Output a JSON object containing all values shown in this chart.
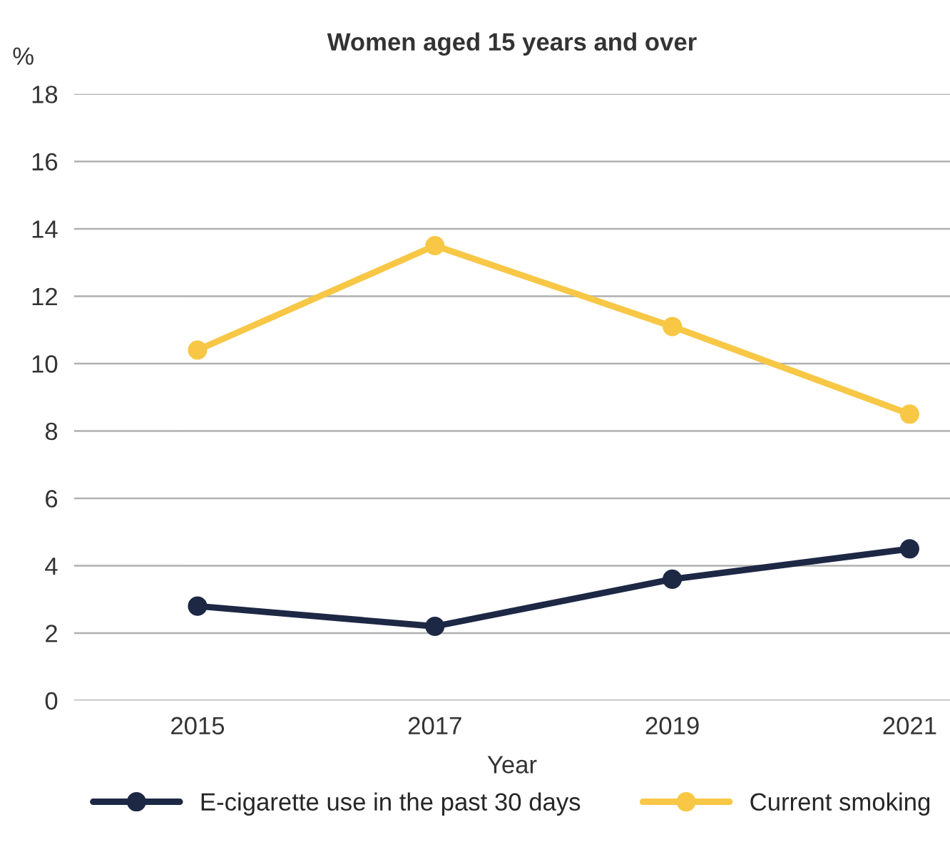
{
  "chart_data": {
    "type": "line",
    "title": "Women aged 15 years and over",
    "xlabel": "Year",
    "ylabel": "%",
    "categories": [
      "2015",
      "2017",
      "2019",
      "2021"
    ],
    "series": [
      {
        "name": "E-cigarette use in the past 30 days",
        "color": "#1d2845",
        "values": [
          2.8,
          2.2,
          3.6,
          4.5
        ]
      },
      {
        "name": "Current smoking",
        "color": "#f7c745",
        "values": [
          10.4,
          13.5,
          11.1,
          8.5
        ]
      }
    ],
    "ylim": [
      0,
      18
    ],
    "yticks": [
      0,
      2,
      4,
      6,
      8,
      10,
      12,
      14,
      16,
      18
    ],
    "grid": "y",
    "legend": "bottom",
    "marker": "circle",
    "line_style": "solid"
  }
}
